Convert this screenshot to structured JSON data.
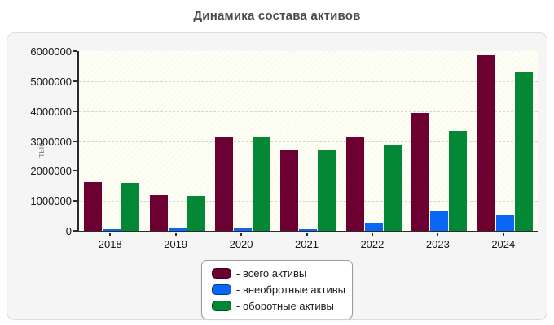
{
  "title": "Динамика состава активов",
  "panel": {
    "background": "#f5f5f5",
    "border": "#dcdcdc"
  },
  "plot": {
    "background": "#fcfcee",
    "hatch": "white-diagonal",
    "axis_color": "#2b2b2b",
    "gridline_color": "#d6d6d6",
    "gridline_style": "dashed"
  },
  "y_axis": {
    "title": "тыс.",
    "min": 0,
    "max": 6000000,
    "tick_step": 1000000,
    "tick_labels": [
      "0",
      "1000000",
      "2000000",
      "3000000",
      "4000000",
      "5000000",
      "6000000"
    ]
  },
  "chart_data": {
    "type": "bar",
    "title": "Динамика состава активов",
    "xlabel": "",
    "ylabel": "тыс.",
    "ylim": [
      0,
      6000000
    ],
    "grid": "horizontal-dashed",
    "legend_position": "bottom-center",
    "categories": [
      "2018",
      "2019",
      "2020",
      "2021",
      "2022",
      "2023",
      "2024"
    ],
    "series": [
      {
        "key": "total",
        "name": "всего активы",
        "legend_label": "- всего активы",
        "color": "#6b0031",
        "values": [
          1620000,
          1190000,
          3130000,
          2720000,
          3110000,
          3950000,
          5870000
        ]
      },
      {
        "key": "noncurrent",
        "name": "внеобротные активы",
        "legend_label": "- внеобротные активы",
        "color": "#0a66f5",
        "values": [
          50000,
          70000,
          70000,
          50000,
          280000,
          650000,
          530000
        ]
      },
      {
        "key": "current",
        "name": "оборотные активы",
        "legend_label": "- оборотные активы",
        "color": "#048836",
        "values": [
          1600000,
          1160000,
          3110000,
          2680000,
          2840000,
          3330000,
          5330000
        ]
      }
    ]
  }
}
